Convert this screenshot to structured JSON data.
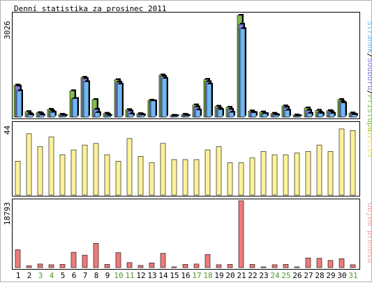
{
  "title": "Denní statistika za prosinec 2011",
  "colors": {
    "frame": "#000000",
    "border_outer": "#b0b0b0",
    "hits": "#82bb4e",
    "files": "#8080e0",
    "pages": "#70b8f0",
    "visits": "#fcf29a",
    "visits_label": "#e8e070",
    "traffic": "#ee7a7a",
    "traffic_label": "#f0a0a0",
    "weekend_day": "#4c9a2a"
  },
  "chart_data": [
    {
      "type": "bar",
      "name": "hits_files_pages",
      "ymax_label": "3026",
      "ylim": [
        0,
        3026
      ],
      "legend": [
        "Stránek",
        "Souborů",
        "Přístupů"
      ],
      "legend_sep": "/",
      "series": [
        {
          "key": "hits",
          "name": "Přístupů",
          "values": [
            950,
            160,
            130,
            230,
            80,
            780,
            1180,
            520,
            110,
            1110,
            220,
            100,
            500,
            1250,
            50,
            80,
            360,
            1120,
            320,
            290,
            3026,
            180,
            150,
            110,
            330,
            60,
            270,
            200,
            190,
            520,
            120
          ]
        },
        {
          "key": "files",
          "name": "Souborů",
          "values": [
            920,
            100,
            100,
            180,
            60,
            540,
            1140,
            230,
            80,
            1040,
            180,
            80,
            470,
            1210,
            40,
            60,
            300,
            1050,
            260,
            230,
            2760,
            140,
            100,
            80,
            290,
            40,
            200,
            140,
            160,
            460,
            90
          ]
        },
        {
          "key": "pages",
          "name": "Stránek",
          "values": [
            780,
            70,
            60,
            140,
            40,
            550,
            1050,
            130,
            40,
            980,
            90,
            60,
            480,
            1150,
            30,
            40,
            210,
            980,
            220,
            140,
            2630,
            130,
            100,
            60,
            200,
            30,
            110,
            110,
            110,
            420,
            70
          ]
        }
      ]
    },
    {
      "type": "bar",
      "name": "visits",
      "ymax_label": "44",
      "ylim": [
        0,
        44
      ],
      "legend": [
        "Návštěv"
      ],
      "series": [
        {
          "key": "visits",
          "name": "Návštěv",
          "values": [
            21,
            38,
            30,
            36,
            25,
            28,
            31,
            32,
            25,
            21,
            35,
            24,
            20,
            32,
            22,
            22,
            22,
            28,
            30,
            20,
            20,
            23,
            27,
            25,
            25,
            26,
            27,
            31,
            27,
            41,
            40
          ]
        }
      ]
    },
    {
      "type": "bar",
      "name": "traffic",
      "ymax_label": "18793",
      "ylim": [
        0,
        18793
      ],
      "legend": [
        "Objem přenosu"
      ],
      "series": [
        {
          "key": "traffic",
          "name": "Objem přenosu",
          "values": [
            5000,
            500,
            1000,
            800,
            900,
            4300,
            3500,
            6800,
            900,
            4200,
            1400,
            600,
            1300,
            4000,
            100,
            900,
            1000,
            3700,
            800,
            900,
            18793,
            900,
            200,
            800,
            900,
            100,
            2700,
            2600,
            2000,
            2500,
            800
          ]
        }
      ]
    }
  ],
  "days": [
    "1",
    "2",
    "3",
    "4",
    "5",
    "6",
    "7",
    "8",
    "9",
    "10",
    "11",
    "12",
    "13",
    "14",
    "15",
    "16",
    "17",
    "18",
    "19",
    "20",
    "21",
    "22",
    "23",
    "24",
    "25",
    "26",
    "27",
    "28",
    "29",
    "30",
    "31"
  ],
  "weekend_days": [
    3,
    4,
    10,
    11,
    17,
    18,
    24,
    25,
    31
  ]
}
